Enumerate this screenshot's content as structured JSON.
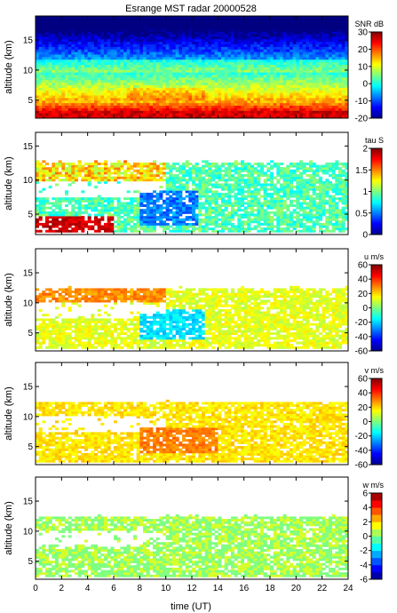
{
  "title": "Esrange MST radar 20000528",
  "chart_data": {
    "type": "heatmap",
    "title": "Esrange MST radar 20000528",
    "xlabel": "time (UT)",
    "xlim": [
      0,
      24
    ],
    "x_ticks": [
      "0",
      "2",
      "4",
      "6",
      "8",
      "10",
      "12",
      "14",
      "16",
      "18",
      "20",
      "22",
      "24"
    ],
    "panels": [
      {
        "ylabel": "altitude (km)",
        "ylim": [
          2,
          19
        ],
        "y_ticks": [
          "5",
          "10",
          "15"
        ],
        "y_tick_values": [
          5,
          10,
          15
        ],
        "colorbar_label": "SNR dB",
        "colorbar_range": [
          -20,
          30
        ],
        "colorbar_ticks": [
          "30",
          "20",
          "10",
          "0",
          "-10",
          "-20"
        ],
        "colorbar_tick_values": [
          30,
          20,
          10,
          0,
          -10,
          -20
        ],
        "colorscale": "jet",
        "description": "SNR strongest (red) below ~5 km, decreasing with height to deep blue above ~15 km; a cyan/green band near 10-11 km"
      },
      {
        "ylabel": "altitude (km)",
        "ylim": [
          2,
          17
        ],
        "y_ticks": [
          "5",
          "10",
          "15"
        ],
        "y_tick_values": [
          5,
          10,
          15
        ],
        "colorbar_label": "tau S",
        "colorbar_range": [
          0,
          2
        ],
        "colorbar_ticks": [
          "2",
          "1.5",
          "1",
          "0.5",
          "0"
        ],
        "colorbar_tick_values": [
          2,
          1.5,
          1,
          0.5,
          0
        ],
        "colorscale": "jet",
        "description": "Sparse data between 2 and 13 km; dark red values below 5 km before 6 UT; blue region 8-12 UT around 4-8 km"
      },
      {
        "ylabel": "altitude (km)",
        "ylim": [
          2,
          19
        ],
        "y_ticks": [
          "5",
          "10",
          "15"
        ],
        "y_tick_values": [
          5,
          10,
          15
        ],
        "colorbar_label": "u m/s",
        "colorbar_range": [
          -60,
          60
        ],
        "colorbar_ticks": [
          "60",
          "40",
          "20",
          "0",
          "-20",
          "-40",
          "-60"
        ],
        "colorbar_tick_values": [
          60,
          40,
          20,
          0,
          -20,
          -40,
          -60
        ],
        "colorscale": "jet",
        "description": "Mostly yellow/green (0 to 20 m/s); cyan region 8-13 UT between 4 and 9 km"
      },
      {
        "ylabel": "altitude (km)",
        "ylim": [
          2,
          19
        ],
        "y_ticks": [
          "5",
          "10",
          "15"
        ],
        "y_tick_values": [
          5,
          10,
          15
        ],
        "colorbar_label": "v m/s",
        "colorbar_range": [
          -60,
          60
        ],
        "colorbar_ticks": [
          "60",
          "40",
          "20",
          "0",
          "-20",
          "-40",
          "-60"
        ],
        "colorbar_tick_values": [
          60,
          40,
          20,
          0,
          -20,
          -40,
          -60
        ],
        "colorscale": "jet",
        "description": "Mostly yellow (10-20 m/s); orange patch 8-14 UT between 4 and 8 km"
      },
      {
        "ylabel": "altitude (km)",
        "ylim": [
          2,
          19
        ],
        "y_ticks": [
          "5",
          "10",
          "15"
        ],
        "y_tick_values": [
          5,
          10,
          15
        ],
        "colorbar_label": "w m/s",
        "colorbar_range": [
          -6,
          6
        ],
        "colorbar_ticks": [
          "6",
          "4",
          "2",
          "0",
          "-2",
          "-4",
          "-6"
        ],
        "colorbar_tick_values": [
          6,
          4,
          2,
          0,
          -2,
          -4,
          -6
        ],
        "colorscale": "jet_discrete",
        "description": "Nearly uniform light green (about 0 m/s) everywhere data exist"
      }
    ]
  }
}
